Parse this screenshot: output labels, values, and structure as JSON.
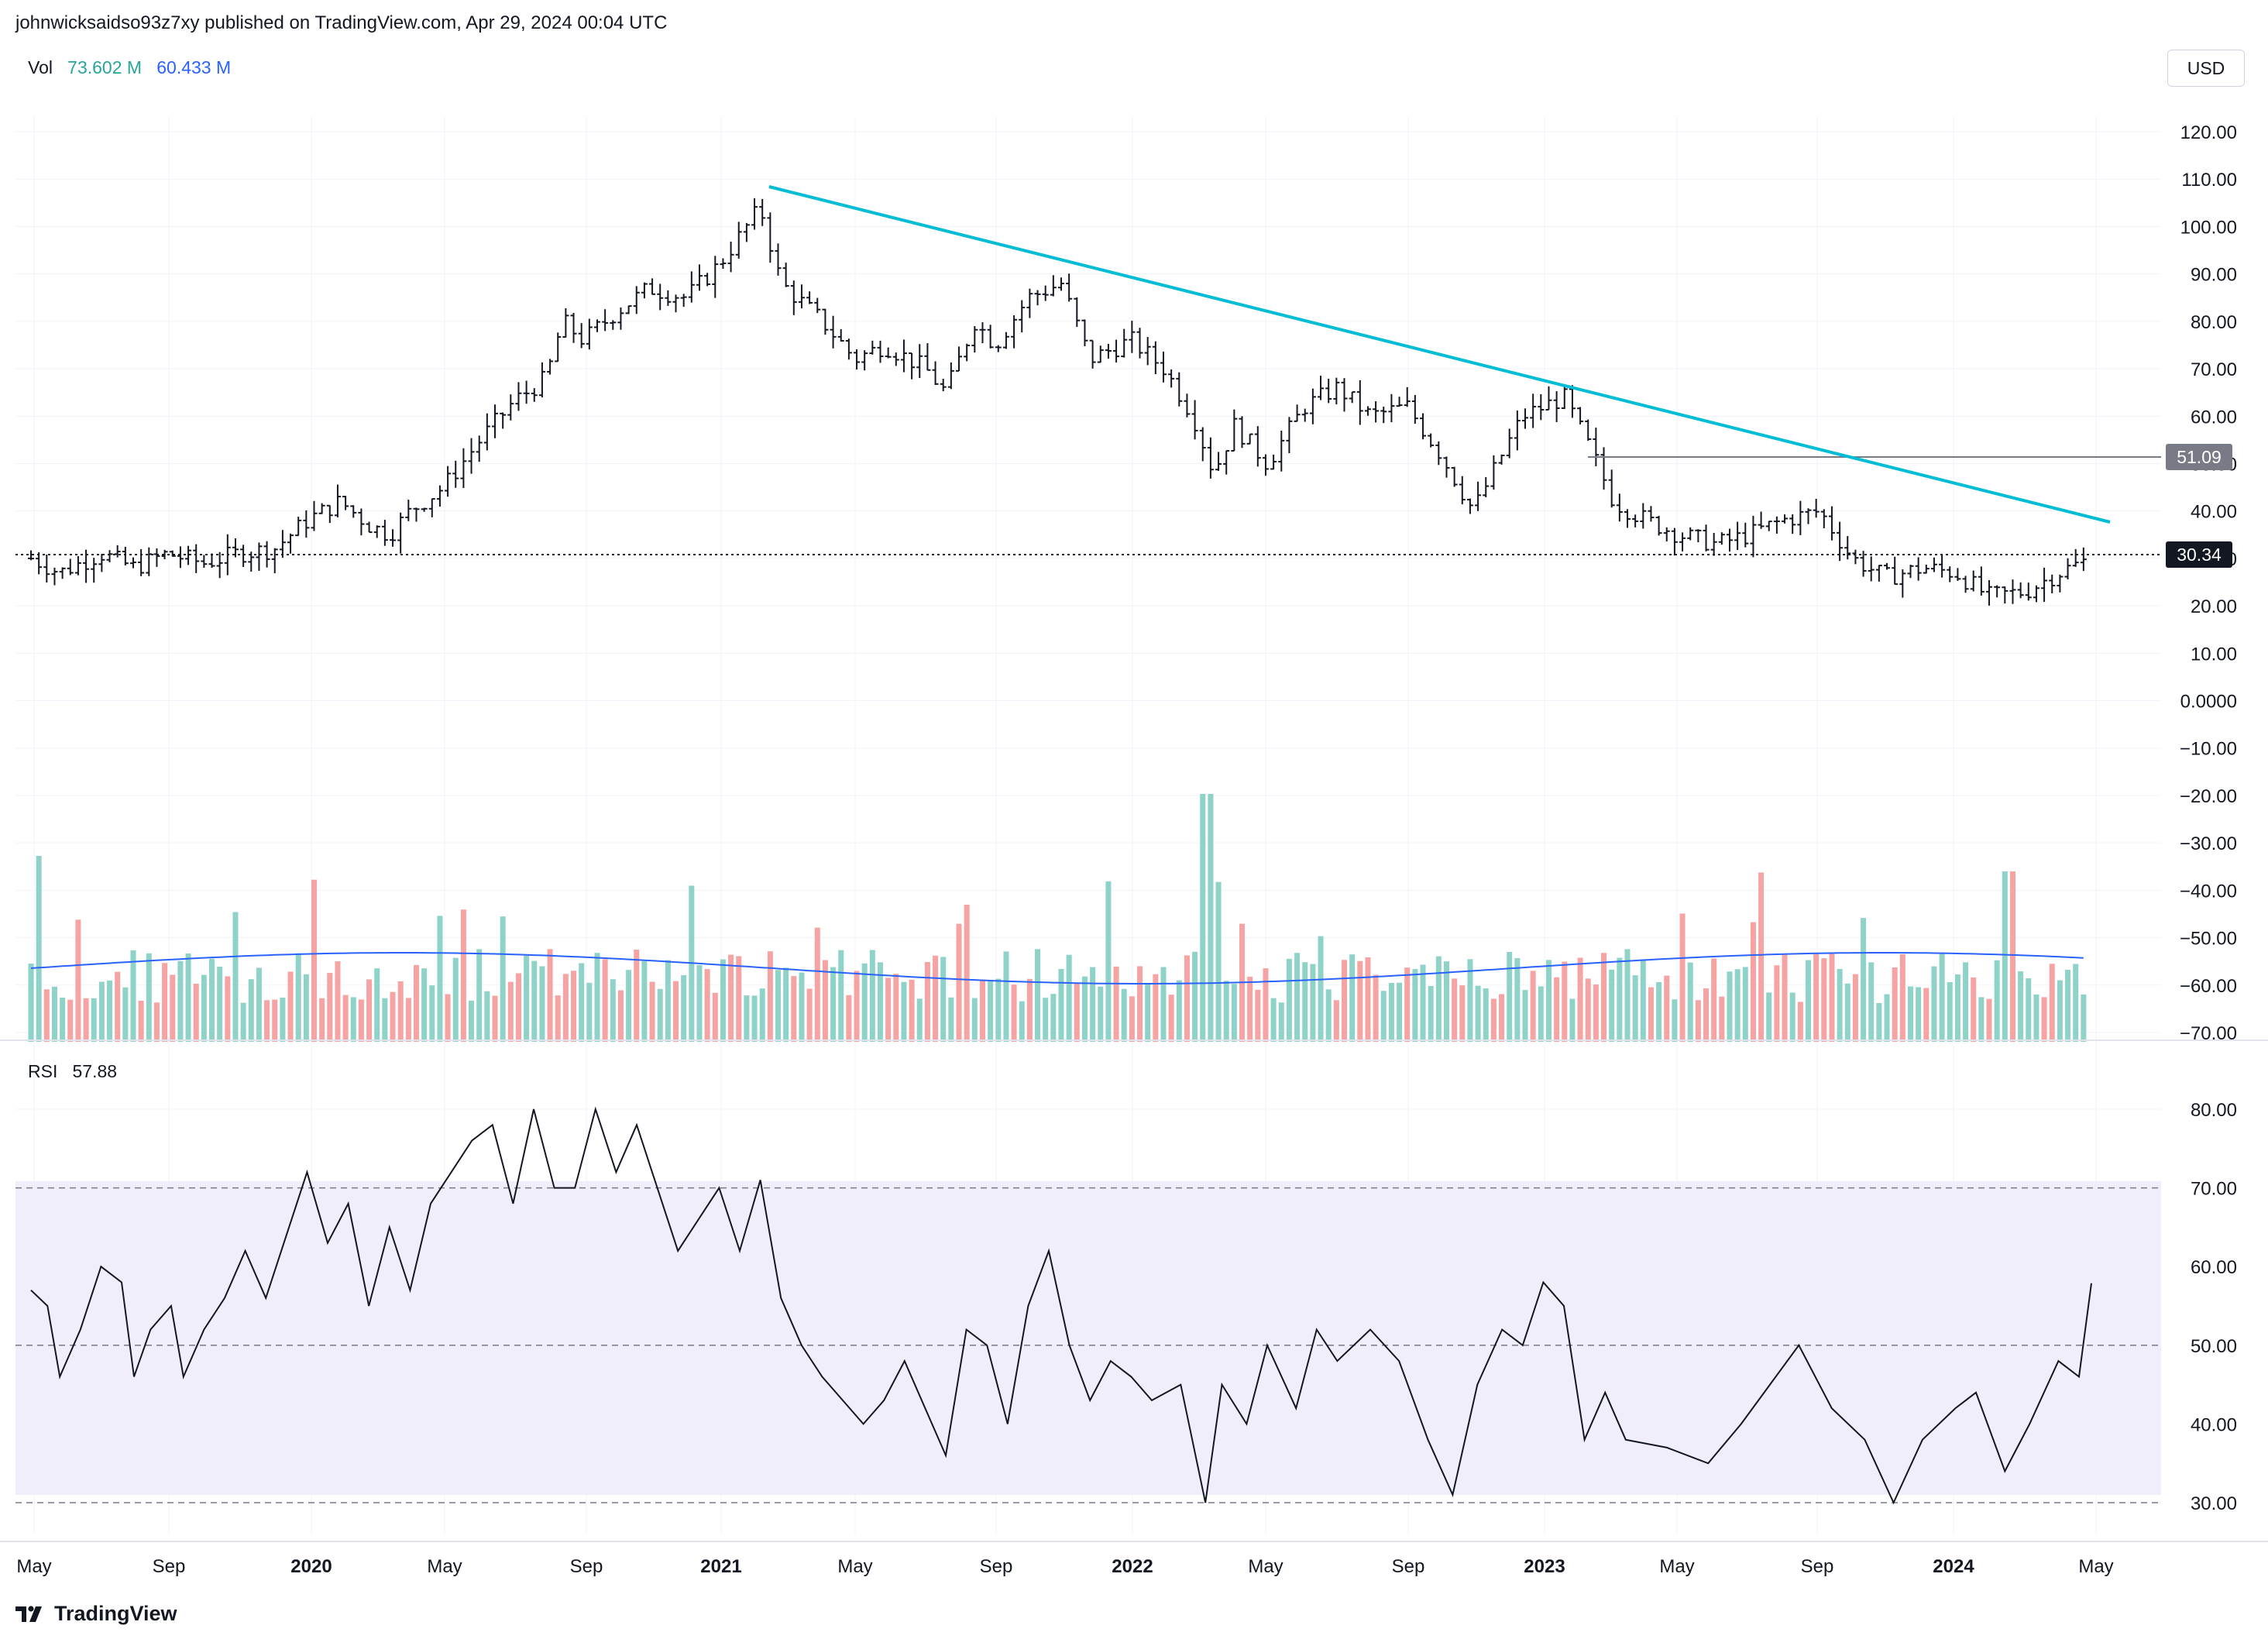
{
  "header": {
    "published_line": "johnwicksaidso93z7xy published on TradingView.com, Apr 29, 2024 00:04 UTC"
  },
  "brand": {
    "name": "TradingView"
  },
  "currency_button": "USD",
  "volume_legend": {
    "label": "Vol",
    "value": "73.602 M",
    "ma_value": "60.433 M",
    "value_color": "#26a69a",
    "ma_color": "#2962ff"
  },
  "rsi_legend": {
    "label": "RSI",
    "value": "57.88"
  },
  "colors": {
    "up_volume": "#8fd3c8",
    "down_volume": "#f5a3a3",
    "trendline": "#00bcd4",
    "volume_ma": "#2962ff",
    "rsi_band": "#f0eefa",
    "current_price_label": "#131722",
    "level_label": "#787b86"
  },
  "chart_data": [
    {
      "type": "ohlc",
      "id": "price",
      "x_labels": [
        "May",
        "Sep",
        "2020",
        "May",
        "Sep",
        "2021",
        "May",
        "Sep",
        "2022",
        "May",
        "Sep",
        "2023",
        "May",
        "Sep",
        "2024",
        "May"
      ],
      "y_ticks": [
        "120.00",
        "110.00",
        "100.00",
        "90.00",
        "80.00",
        "70.00",
        "60.00",
        "50.00",
        "40.00",
        "30.00",
        "20.00",
        "10.00",
        "0.0000",
        "−10.00",
        "−20.00",
        "−30.00",
        "−40.00",
        "−50.00",
        "−60.00",
        "−70.00"
      ],
      "ylim": [
        -72,
        125
      ],
      "current_price": "30.34",
      "horizontal_level": "51.09",
      "trendline": {
        "from": [
          "2021-02",
          108
        ],
        "to": [
          "2024-05",
          38
        ]
      },
      "close_path": [
        [
          2019.33,
          30
        ],
        [
          2019.4,
          27
        ],
        [
          2019.45,
          29
        ],
        [
          2019.5,
          31
        ],
        [
          2019.58,
          28
        ],
        [
          2019.66,
          31
        ],
        [
          2019.75,
          29
        ],
        [
          2019.83,
          31
        ],
        [
          2019.92,
          32
        ],
        [
          2020.0,
          38
        ],
        [
          2020.08,
          42
        ],
        [
          2020.15,
          37
        ],
        [
          2020.2,
          35
        ],
        [
          2020.25,
          40
        ],
        [
          2020.33,
          45
        ],
        [
          2020.42,
          55
        ],
        [
          2020.5,
          63
        ],
        [
          2020.58,
          68
        ],
        [
          2020.62,
          80
        ],
        [
          2020.67,
          76
        ],
        [
          2020.75,
          82
        ],
        [
          2020.83,
          87
        ],
        [
          2020.92,
          85
        ],
        [
          2021.0,
          92
        ],
        [
          2021.05,
          98
        ],
        [
          2021.1,
          104
        ],
        [
          2021.15,
          88
        ],
        [
          2021.25,
          80
        ],
        [
          2021.33,
          72
        ],
        [
          2021.4,
          75
        ],
        [
          2021.5,
          70
        ],
        [
          2021.55,
          65
        ],
        [
          2021.62,
          80
        ],
        [
          2021.67,
          75
        ],
        [
          2021.75,
          85
        ],
        [
          2021.83,
          88
        ],
        [
          2021.9,
          72
        ],
        [
          2022.0,
          76
        ],
        [
          2022.08,
          70
        ],
        [
          2022.15,
          60
        ],
        [
          2022.2,
          48
        ],
        [
          2022.25,
          58
        ],
        [
          2022.33,
          50
        ],
        [
          2022.42,
          62
        ],
        [
          2022.5,
          66
        ],
        [
          2022.58,
          60
        ],
        [
          2022.67,
          62
        ],
        [
          2022.75,
          52
        ],
        [
          2022.83,
          40
        ],
        [
          2022.9,
          52
        ],
        [
          2022.95,
          60
        ],
        [
          2023.0,
          62
        ],
        [
          2023.05,
          64
        ],
        [
          2023.12,
          52
        ],
        [
          2023.17,
          42
        ],
        [
          2023.25,
          38
        ],
        [
          2023.33,
          35
        ],
        [
          2023.42,
          33
        ],
        [
          2023.5,
          35
        ],
        [
          2023.58,
          38
        ],
        [
          2023.67,
          40
        ],
        [
          2023.75,
          30
        ],
        [
          2023.83,
          26
        ],
        [
          2023.92,
          28
        ],
        [
          2024.0,
          27
        ],
        [
          2024.08,
          22
        ],
        [
          2024.17,
          23
        ],
        [
          2024.25,
          27
        ],
        [
          2024.33,
          30
        ]
      ]
    },
    {
      "type": "bar",
      "id": "volume",
      "series": [
        {
          "name": "Vol",
          "note": "weekly volume bars (green up, red down)"
        }
      ],
      "peaks": [
        "2019-05",
        "2022-03",
        "2024-02"
      ],
      "ma_value": "60.433 M",
      "last_value": "73.602 M"
    },
    {
      "type": "line",
      "id": "rsi",
      "y_ticks": [
        "80.00",
        "70.00",
        "60.00",
        "50.00",
        "40.00",
        "30.00"
      ],
      "ylim": [
        27,
        84
      ],
      "band": [
        30,
        70
      ],
      "midline": 50,
      "last": 57.88,
      "values": [
        [
          2019.33,
          57
        ],
        [
          2019.37,
          55
        ],
        [
          2019.4,
          46
        ],
        [
          2019.45,
          52
        ],
        [
          2019.5,
          60
        ],
        [
          2019.55,
          58
        ],
        [
          2019.58,
          46
        ],
        [
          2019.62,
          52
        ],
        [
          2019.67,
          55
        ],
        [
          2019.7,
          46
        ],
        [
          2019.75,
          52
        ],
        [
          2019.8,
          56
        ],
        [
          2019.85,
          62
        ],
        [
          2019.9,
          56
        ],
        [
          2019.95,
          64
        ],
        [
          2020.0,
          72
        ],
        [
          2020.05,
          63
        ],
        [
          2020.1,
          68
        ],
        [
          2020.15,
          55
        ],
        [
          2020.2,
          65
        ],
        [
          2020.25,
          57
        ],
        [
          2020.3,
          68
        ],
        [
          2020.35,
          72
        ],
        [
          2020.4,
          76
        ],
        [
          2020.45,
          78
        ],
        [
          2020.5,
          68
        ],
        [
          2020.55,
          80
        ],
        [
          2020.6,
          70
        ],
        [
          2020.65,
          70
        ],
        [
          2020.7,
          80
        ],
        [
          2020.75,
          72
        ],
        [
          2020.8,
          78
        ],
        [
          2020.85,
          70
        ],
        [
          2020.9,
          62
        ],
        [
          2020.95,
          66
        ],
        [
          2021.0,
          70
        ],
        [
          2021.05,
          62
        ],
        [
          2021.1,
          71
        ],
        [
          2021.15,
          56
        ],
        [
          2021.2,
          50
        ],
        [
          2021.25,
          46
        ],
        [
          2021.3,
          43
        ],
        [
          2021.35,
          40
        ],
        [
          2021.4,
          43
        ],
        [
          2021.45,
          48
        ],
        [
          2021.5,
          42
        ],
        [
          2021.55,
          36
        ],
        [
          2021.6,
          52
        ],
        [
          2021.65,
          50
        ],
        [
          2021.7,
          40
        ],
        [
          2021.75,
          55
        ],
        [
          2021.8,
          62
        ],
        [
          2021.85,
          50
        ],
        [
          2021.9,
          43
        ],
        [
          2021.95,
          48
        ],
        [
          2022.0,
          46
        ],
        [
          2022.05,
          43
        ],
        [
          2022.12,
          45
        ],
        [
          2022.18,
          30
        ],
        [
          2022.22,
          45
        ],
        [
          2022.28,
          40
        ],
        [
          2022.33,
          50
        ],
        [
          2022.4,
          42
        ],
        [
          2022.45,
          52
        ],
        [
          2022.5,
          48
        ],
        [
          2022.58,
          52
        ],
        [
          2022.65,
          48
        ],
        [
          2022.72,
          38
        ],
        [
          2022.78,
          31
        ],
        [
          2022.84,
          45
        ],
        [
          2022.9,
          52
        ],
        [
          2022.95,
          50
        ],
        [
          2023.0,
          58
        ],
        [
          2023.05,
          55
        ],
        [
          2023.1,
          38
        ],
        [
          2023.15,
          44
        ],
        [
          2023.2,
          38
        ],
        [
          2023.3,
          37
        ],
        [
          2023.4,
          35
        ],
        [
          2023.48,
          40
        ],
        [
          2023.55,
          45
        ],
        [
          2023.62,
          50
        ],
        [
          2023.7,
          42
        ],
        [
          2023.78,
          38
        ],
        [
          2023.85,
          30
        ],
        [
          2023.92,
          38
        ],
        [
          2024.0,
          42
        ],
        [
          2024.05,
          44
        ],
        [
          2024.12,
          34
        ],
        [
          2024.18,
          40
        ],
        [
          2024.25,
          48
        ],
        [
          2024.3,
          46
        ],
        [
          2024.33,
          57.88
        ]
      ]
    }
  ]
}
